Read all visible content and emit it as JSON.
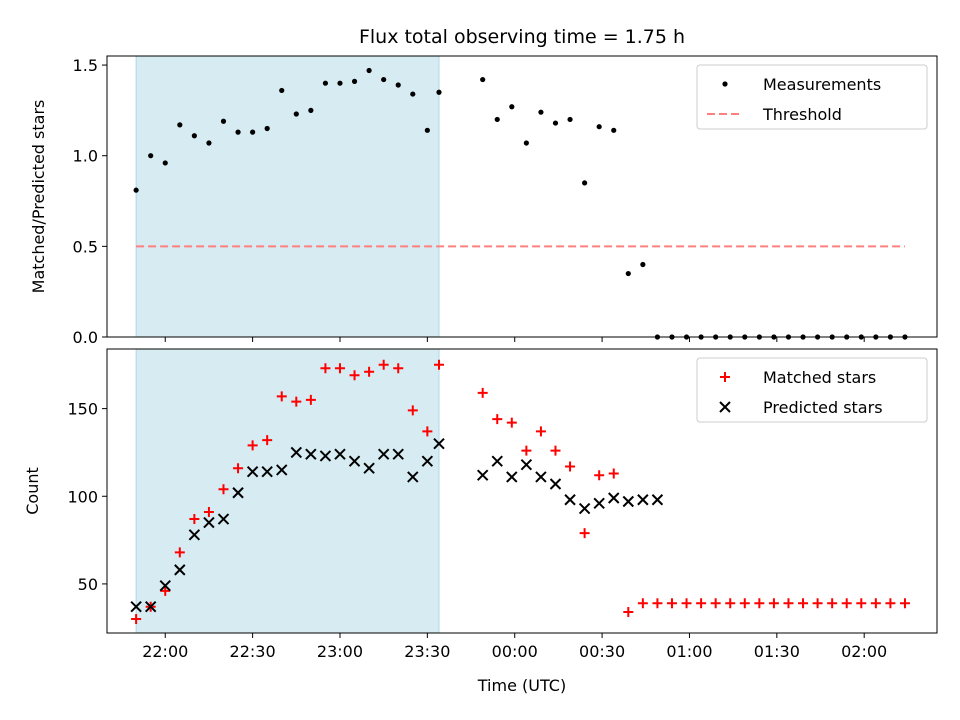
{
  "chart_data": {
    "title": "Flux total observing time = 1.75 h",
    "xlabel": "Time (UTC)",
    "x_ticks": [
      "22:00",
      "22:30",
      "23:00",
      "23:30",
      "00:00",
      "00:30",
      "01:00",
      "01:30",
      "02:00"
    ],
    "shaded_window": {
      "start": "21:50",
      "end": "23:34",
      "color": "#add8e6"
    },
    "panels": [
      {
        "type": "scatter",
        "ylabel": "Matched/Predicted stars",
        "ylim": [
          0,
          1.55
        ],
        "y_ticks": [
          "0.0",
          "0.5",
          "1.0",
          "1.5"
        ],
        "legend_position": "top-right",
        "series": [
          {
            "name": "Measurements",
            "marker": "dot",
            "color": "#000000",
            "x": [
              "21:50",
              "21:55",
              "22:00",
              "22:05",
              "22:10",
              "22:15",
              "22:20",
              "22:25",
              "22:30",
              "22:35",
              "22:40",
              "22:45",
              "22:50",
              "22:55",
              "23:00",
              "23:05",
              "23:10",
              "23:15",
              "23:20",
              "23:25",
              "23:30",
              "23:34",
              "23:49",
              "23:54",
              "23:59",
              "24:04",
              "24:09",
              "24:14",
              "24:19",
              "24:24",
              "24:29",
              "24:34",
              "24:39",
              "24:44",
              "24:49",
              "24:54",
              "24:59",
              "25:04",
              "25:09",
              "25:14",
              "25:19",
              "25:24",
              "25:29",
              "25:34",
              "25:39",
              "25:44",
              "25:49",
              "25:54",
              "25:59",
              "26:04",
              "26:09",
              "26:14"
            ],
            "y": [
              0.81,
              1.0,
              0.96,
              1.17,
              1.11,
              1.07,
              1.19,
              1.13,
              1.13,
              1.15,
              1.36,
              1.23,
              1.25,
              1.4,
              1.4,
              1.41,
              1.47,
              1.42,
              1.39,
              1.34,
              1.14,
              1.35,
              1.42,
              1.2,
              1.27,
              1.07,
              1.24,
              1.18,
              1.2,
              0.85,
              1.16,
              1.14,
              0.35,
              0.4,
              0,
              0,
              0,
              0,
              0,
              0,
              0,
              0,
              0,
              0,
              0,
              0,
              0,
              0,
              0,
              0,
              0,
              0
            ]
          },
          {
            "name": "Threshold",
            "style": "dashed",
            "color": "#ff7f7f",
            "x": [
              "21:50",
              "26:14"
            ],
            "y": [
              0.5,
              0.5
            ]
          }
        ]
      },
      {
        "type": "scatter",
        "ylabel": "Count",
        "ylim": [
          22,
          184
        ],
        "y_ticks": [
          "50",
          "100",
          "150"
        ],
        "legend_position": "top-right",
        "series": [
          {
            "name": "Matched stars",
            "marker": "plus",
            "color": "#ff0000",
            "x": [
              "21:50",
              "21:55",
              "22:00",
              "22:05",
              "22:10",
              "22:15",
              "22:20",
              "22:25",
              "22:30",
              "22:35",
              "22:40",
              "22:45",
              "22:50",
              "22:55",
              "23:00",
              "23:05",
              "23:10",
              "23:15",
              "23:20",
              "23:25",
              "23:30",
              "23:34",
              "23:49",
              "23:54",
              "23:59",
              "24:04",
              "24:09",
              "24:14",
              "24:19",
              "24:24",
              "24:29",
              "24:34",
              "24:39",
              "24:44",
              "24:49",
              "24:54",
              "24:59",
              "25:04",
              "25:09",
              "25:14",
              "25:19",
              "25:24",
              "25:29",
              "25:34",
              "25:39",
              "25:44",
              "25:49",
              "25:54",
              "25:59",
              "26:04",
              "26:09",
              "26:14"
            ],
            "y": [
              30,
              37,
              46,
              68,
              87,
              91,
              104,
              116,
              129,
              132,
              157,
              154,
              155,
              173,
              173,
              169,
              171,
              175,
              173,
              149,
              137,
              175,
              159,
              144,
              142,
              126,
              137,
              126,
              117,
              79,
              112,
              113,
              34,
              39,
              39,
              39,
              39,
              39,
              39,
              39,
              39,
              39,
              39,
              39,
              39,
              39,
              39,
              39,
              39,
              39,
              39,
              39
            ]
          },
          {
            "name": "Predicted stars",
            "marker": "x",
            "color": "#000000",
            "x": [
              "21:50",
              "21:55",
              "22:00",
              "22:05",
              "22:10",
              "22:15",
              "22:20",
              "22:25",
              "22:30",
              "22:35",
              "22:40",
              "22:45",
              "22:50",
              "22:55",
              "23:00",
              "23:05",
              "23:10",
              "23:15",
              "23:20",
              "23:25",
              "23:30",
              "23:34",
              "23:49",
              "23:54",
              "23:59",
              "24:04",
              "24:09",
              "24:14",
              "24:19",
              "24:24",
              "24:29",
              "24:34",
              "24:39",
              "24:44",
              "24:49"
            ],
            "y": [
              37,
              37,
              49,
              58,
              78,
              85,
              87,
              102,
              114,
              114,
              115,
              125,
              124,
              123,
              124,
              120,
              116,
              124,
              124,
              111,
              120,
              130,
              112,
              120,
              111,
              118,
              111,
              107,
              98,
              93,
              96,
              99,
              97,
              98,
              98
            ]
          }
        ]
      }
    ]
  }
}
